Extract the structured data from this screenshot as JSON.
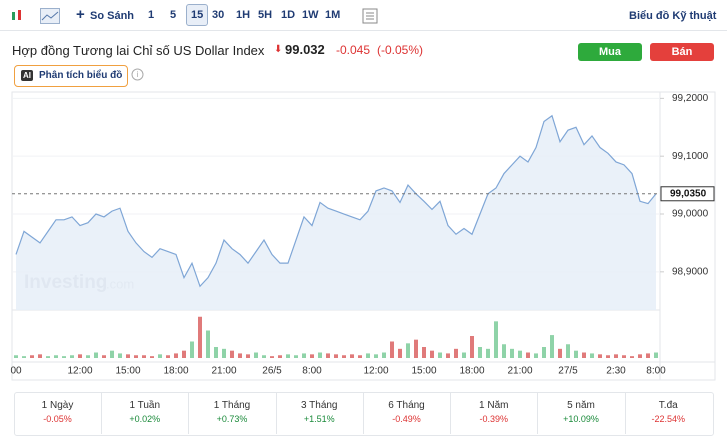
{
  "toolbar": {
    "compare": "So Sánh",
    "ranges": [
      "1",
      "5",
      "15",
      "30",
      "1H",
      "5H",
      "1D",
      "1W",
      "1M"
    ],
    "active": 2,
    "technical": "Biểu đồ Kỹ thuật"
  },
  "header": {
    "title": "Hợp đồng Tương lai Chỉ số US Dollar Index",
    "price": "99.032",
    "change": "-0.045",
    "change_pct": "(-0.05%)",
    "buy": "Mua",
    "sell": "Bán",
    "ai": "AI",
    "analysis": "Phân tích biểu đồ"
  },
  "chart_data": {
    "type": "line",
    "watermark": "Investing",
    "watermark_suffix": ".com",
    "categories": [
      "00",
      null,
      null,
      null,
      null,
      null,
      null,
      null,
      "12:00",
      null,
      null,
      null,
      null,
      null,
      "15:00",
      null,
      null,
      null,
      null,
      null,
      "18:00",
      null,
      null,
      null,
      null,
      null,
      "21:00",
      null,
      null,
      null,
      null,
      null,
      "26/5",
      null,
      null,
      null,
      null,
      "8:00",
      null,
      null,
      null,
      null,
      null,
      null,
      null,
      "12:00",
      null,
      null,
      null,
      null,
      null,
      "15:00",
      null,
      null,
      null,
      null,
      null,
      "18:00",
      null,
      null,
      null,
      null,
      null,
      "21:00",
      null,
      null,
      null,
      null,
      null,
      "27/5",
      null,
      null,
      null,
      null,
      null,
      "2:30",
      null,
      null,
      null,
      null,
      "8:00"
    ],
    "series": [
      {
        "name": "US Dollar Index",
        "color": "#7fa6d6",
        "values": [
          98.93,
          98.97,
          98.96,
          98.95,
          98.97,
          98.99,
          98.99,
          98.995,
          98.98,
          98.985,
          99.0,
          98.995,
          99.005,
          99.01,
          98.97,
          98.95,
          98.935,
          98.925,
          98.94,
          98.935,
          98.93,
          98.89,
          98.915,
          98.875,
          98.89,
          98.915,
          98.955,
          98.94,
          98.93,
          98.915,
          98.935,
          98.955,
          98.93,
          98.915,
          98.915,
          98.955,
          98.995,
          98.98,
          99.02,
          99.01,
          99.005,
          99.0,
          98.995,
          98.99,
          99.005,
          99.04,
          99.045,
          99.04,
          99.02,
          99.05,
          99.035,
          99.022,
          99.008,
          99.022,
          98.98,
          98.965,
          98.975,
          98.965,
          99.0,
          99.035,
          99.045,
          99.07,
          99.085,
          99.1,
          99.09,
          99.115,
          99.16,
          99.17,
          99.125,
          99.145,
          99.15,
          99.12,
          99.135,
          99.115,
          99.105,
          99.09,
          99.085,
          99.07,
          99.022,
          99.018,
          99.035
        ]
      }
    ],
    "volume": [
      3,
      2,
      3,
      4,
      2,
      3,
      2,
      3,
      4,
      3,
      6,
      3,
      8,
      5,
      4,
      3,
      3,
      2,
      4,
      3,
      5,
      8,
      18,
      45,
      30,
      12,
      10,
      8,
      5,
      4,
      6,
      3,
      2,
      3,
      4,
      3,
      5,
      4,
      6,
      5,
      4,
      3,
      4,
      3,
      5,
      4,
      6,
      18,
      10,
      16,
      20,
      12,
      8,
      6,
      5,
      10,
      6,
      24,
      12,
      10,
      40,
      15,
      10,
      8,
      6,
      5,
      12,
      25,
      10,
      15,
      8,
      6,
      5,
      4,
      3,
      4,
      3,
      2,
      4,
      5,
      6
    ],
    "volume_lim": [
      0,
      48
    ],
    "up_color": "#8fd3a8",
    "down_color": "#e07a7a",
    "ylim": [
      98.834,
      99.211
    ],
    "yticks": [
      {
        "value": 98.9,
        "label": "98,9000"
      },
      {
        "value": 99.0,
        "label": "99,0000"
      },
      {
        "value": 99.1,
        "label": "99,1000"
      },
      {
        "value": 99.2,
        "label": "99,2000"
      }
    ],
    "last_price": {
      "value": 99.035,
      "label": "99,0350"
    },
    "grid": true
  },
  "performance": [
    {
      "label": "1 Ngày",
      "value": "-0.05%"
    },
    {
      "label": "1 Tuần",
      "value": "+0.02%"
    },
    {
      "label": "1 Tháng",
      "value": "+0.73%"
    },
    {
      "label": "3 Tháng",
      "value": "+1.51%"
    },
    {
      "label": "6 Tháng",
      "value": "-0.49%"
    },
    {
      "label": "1 Năm",
      "value": "-0.39%"
    },
    {
      "label": "5 năm",
      "value": "+10.09%"
    },
    {
      "label": "T.đa",
      "value": "-22.54%"
    }
  ]
}
